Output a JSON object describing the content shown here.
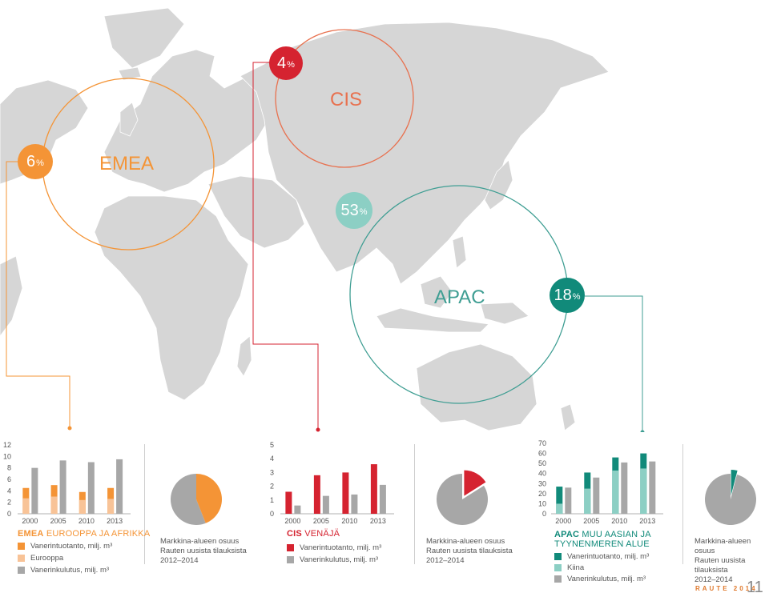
{
  "colors": {
    "emea": "#f49436",
    "emea_light": "#f8c397",
    "cis": "#d52330",
    "apac_dark": "#118a7a",
    "apac_light": "#8ccfc4",
    "grey": "#a7a7a7",
    "map": "#d6d6d6"
  },
  "map": {
    "regions": [
      {
        "name": "EMEA",
        "share_num": "6",
        "share_pct": "%"
      },
      {
        "name": "CIS",
        "share_num": "4",
        "share_pct": "%"
      },
      {
        "name": "APAC",
        "share_num": "18",
        "share_pct": "%"
      },
      {
        "name": "",
        "share_num": "53",
        "share_pct": "%"
      }
    ]
  },
  "chart_data": [
    {
      "type": "bar",
      "region": "EMEA",
      "title_bold": "EMEA",
      "title_rest": " EUROOPPA JA AFRIKKA",
      "x_ticks": [
        "2000",
        "2005",
        "2010",
        "2013"
      ],
      "y_ticks": [
        "12",
        "10",
        "8",
        "6",
        "4",
        "2",
        "0"
      ],
      "ylim": [
        0,
        12
      ],
      "categories": [
        "2000",
        "2005",
        "2010",
        "2013"
      ],
      "series": [
        {
          "name": "Vanerintuotanto, milj. m³",
          "values": [
            4.5,
            5.0,
            3.8,
            4.5
          ]
        },
        {
          "name": "Eurooppa",
          "values": [
            2.7,
            3.0,
            2.4,
            2.6
          ]
        },
        {
          "name": "Vanerinkulutus, milj. m³",
          "values": [
            8.0,
            9.3,
            9.0,
            9.5
          ]
        }
      ],
      "share_chart": {
        "type": "pie",
        "values": [
          44,
          56
        ],
        "caption": [
          "Markkina-alueen osuus",
          "Rauten uusista tilauksista",
          "2012–2014"
        ]
      }
    },
    {
      "type": "bar",
      "region": "CIS",
      "title_bold": "CIS",
      "title_rest": " VENÄJÄ",
      "x_ticks": [
        "2000",
        "2005",
        "2010",
        "2013"
      ],
      "y_ticks": [
        "5",
        "4",
        "3",
        "2",
        "1",
        "0"
      ],
      "ylim": [
        0,
        5
      ],
      "categories": [
        "2000",
        "2005",
        "2010",
        "2013"
      ],
      "series": [
        {
          "name": "Vanerintuotanto, milj. m³",
          "values": [
            1.6,
            2.8,
            3.0,
            3.6
          ]
        },
        {
          "name": "Vanerinkulutus, milj. m³",
          "values": [
            0.6,
            1.3,
            1.4,
            2.1
          ]
        }
      ],
      "share_chart": {
        "type": "pie",
        "values": [
          16,
          84
        ],
        "caption": [
          "Markkina-alueen osuus",
          "Rauten uusista tilauksista",
          "2012–2014"
        ]
      }
    },
    {
      "type": "bar",
      "region": "APAC",
      "title_bold": "APAC",
      "title_rest": " MUU AASIAN JA",
      "title_line2": "TYYNENMEREN ALUE",
      "x_ticks": [
        "2000",
        "2005",
        "2010",
        "2013"
      ],
      "y_ticks": [
        "70",
        "60",
        "50",
        "40",
        "30",
        "20",
        "10",
        "0"
      ],
      "ylim": [
        0,
        70
      ],
      "categories": [
        "2000",
        "2005",
        "2010",
        "2013"
      ],
      "series": [
        {
          "name": "Vanerintuotanto, milj. m³",
          "values": [
            27,
            41,
            56,
            60
          ]
        },
        {
          "name": "Kiina",
          "values": [
            10,
            25,
            43,
            45
          ]
        },
        {
          "name": "Vanerinkulutus, milj. m³",
          "values": [
            26,
            36,
            51,
            52
          ]
        }
      ],
      "share_chart": {
        "type": "pie",
        "values": [
          4,
          96
        ],
        "caption": [
          "Markkina-alueen osuus",
          "Rauten uusista tilauksista",
          "2012–2014"
        ]
      }
    }
  ],
  "footer": {
    "brand": "RAUTE 2014",
    "page": "11"
  }
}
